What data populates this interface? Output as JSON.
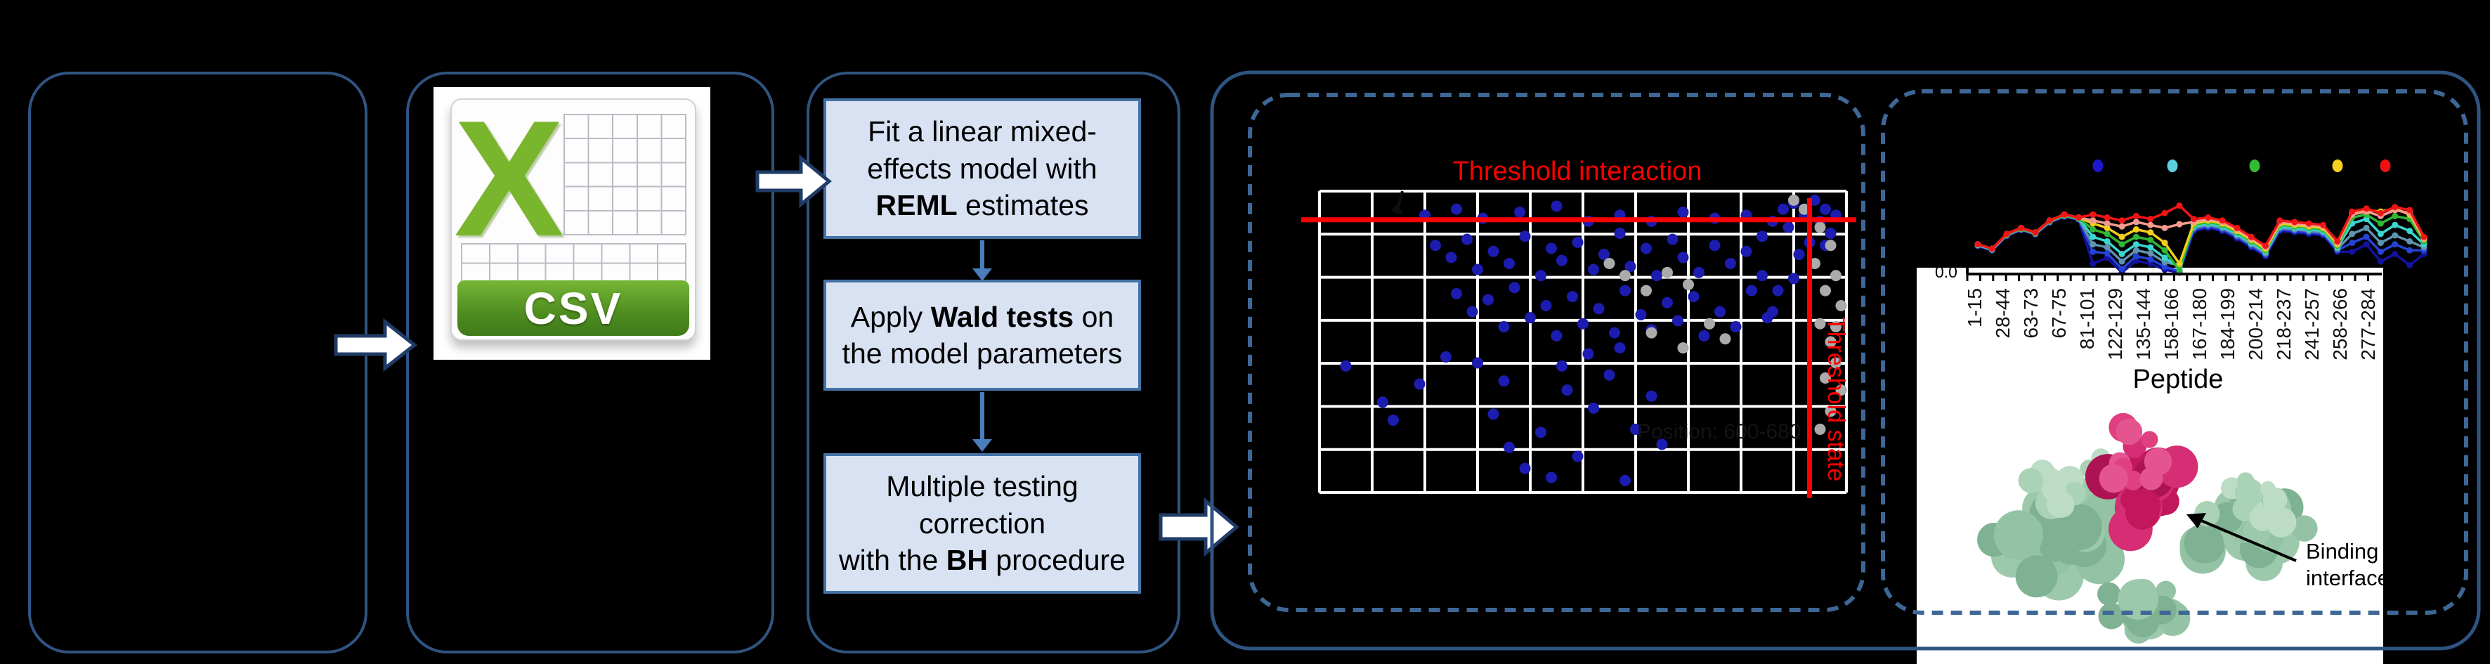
{
  "pipeline": {
    "csv_icon": {
      "x_label": "X",
      "banner_label": "CSV",
      "x_color": "#7AB52E",
      "banner_color": "#4e8c1f"
    },
    "steps": [
      {
        "text": "Fit a linear mixed-\neffects model with\n**REML** estimates"
      },
      {
        "text": "Apply **Wald tests** on\nthe model parameters"
      },
      {
        "text": "Multiple testing\ncorrection\nwith the **BH** procedure"
      }
    ],
    "step_fill": "#D9E2F3",
    "step_border": "#4472A4",
    "solid_border_color": "#2F5481",
    "dashed_border_color": "#3E6796",
    "flow_arrow_color": "#4A7EBB"
  },
  "chart_data": [
    {
      "id": "volcano_scatter",
      "type": "scatter",
      "title": "Threshold interaction",
      "title_color": "#FF0000",
      "grid": {
        "color": "#FFFFFF",
        "v_lines": 11,
        "h_lines": 8,
        "background": "#000000"
      },
      "threshold_lines": {
        "color": "#FF0000",
        "horizontal_label": "Threshold interaction",
        "vertical_label": "Threshold state",
        "horizontal_y_pct": 9.5,
        "vertical_x_pct": 93
      },
      "faint_annotation": {
        "text": "Position: 600-680",
        "color": "#131313"
      },
      "series": [
        {
          "name": "significant-peptides",
          "color": "#1C1CB0",
          "marker_r": 8,
          "points_pct": [
            [
              20,
              8
            ],
            [
              26,
              6
            ],
            [
              31,
              9
            ],
            [
              38,
              7
            ],
            [
              45,
              5
            ],
            [
              51,
              10
            ],
            [
              57,
              8
            ],
            [
              63,
              10
            ],
            [
              69,
              7
            ],
            [
              75,
              9
            ],
            [
              81,
              8
            ],
            [
              86,
              10
            ],
            [
              22,
              18
            ],
            [
              25,
              22
            ],
            [
              28,
              16
            ],
            [
              30,
              26
            ],
            [
              33,
              20
            ],
            [
              36,
              24
            ],
            [
              39,
              15
            ],
            [
              42,
              28
            ],
            [
              44,
              19
            ],
            [
              46,
              23
            ],
            [
              49,
              17
            ],
            [
              52,
              26
            ],
            [
              54,
              21
            ],
            [
              57,
              14
            ],
            [
              59,
              25
            ],
            [
              62,
              19
            ],
            [
              64,
              28
            ],
            [
              67,
              16
            ],
            [
              69,
              22
            ],
            [
              72,
              27
            ],
            [
              75,
              18
            ],
            [
              78,
              24
            ],
            [
              81,
              20
            ],
            [
              84,
              15
            ],
            [
              26,
              34
            ],
            [
              29,
              40
            ],
            [
              32,
              36
            ],
            [
              35,
              45
            ],
            [
              37,
              32
            ],
            [
              40,
              42
            ],
            [
              43,
              38
            ],
            [
              45,
              48
            ],
            [
              48,
              35
            ],
            [
              50,
              44
            ],
            [
              53,
              39
            ],
            [
              56,
              47
            ],
            [
              58,
              33
            ],
            [
              61,
              41
            ],
            [
              63,
              46
            ],
            [
              66,
              37
            ],
            [
              68,
              43
            ],
            [
              71,
              35
            ],
            [
              73,
              48
            ],
            [
              76,
              40
            ],
            [
              79,
              45
            ],
            [
              82,
              33
            ],
            [
              85,
              42
            ],
            [
              5,
              58
            ],
            [
              12,
              70
            ],
            [
              14,
              76
            ],
            [
              19,
              64
            ],
            [
              24,
              55
            ],
            [
              30,
              57
            ],
            [
              33,
              74
            ],
            [
              36,
              85
            ],
            [
              39,
              92
            ],
            [
              42,
              80
            ],
            [
              44,
              95
            ],
            [
              47,
              66
            ],
            [
              49,
              88
            ],
            [
              52,
              72
            ],
            [
              55,
              61
            ],
            [
              58,
              96
            ],
            [
              60,
              79
            ],
            [
              63,
              68
            ],
            [
              65,
              84
            ],
            [
              35,
              63
            ],
            [
              46,
              58
            ],
            [
              51,
              54
            ],
            [
              57,
              52
            ],
            [
              88,
              6
            ],
            [
              90,
              4
            ],
            [
              92,
              8
            ],
            [
              94,
              3
            ],
            [
              95,
              10
            ],
            [
              96,
              6
            ],
            [
              97,
              14
            ],
            [
              93,
              17
            ],
            [
              91,
              21
            ],
            [
              89,
              12
            ],
            [
              98,
              8
            ],
            [
              96,
              18
            ],
            [
              84,
              28
            ],
            [
              87,
              33
            ],
            [
              90,
              29
            ],
            [
              86,
              40
            ]
          ]
        },
        {
          "name": "non-significant-peptides",
          "color": "#ABABAB",
          "marker_r": 8,
          "points_pct": [
            [
              95,
              12
            ],
            [
              97,
              18
            ],
            [
              94,
              24
            ],
            [
              98,
              28
            ],
            [
              96,
              33
            ],
            [
              99,
              38
            ],
            [
              95,
              44
            ],
            [
              97,
              50
            ],
            [
              98,
              57
            ],
            [
              96,
              62
            ],
            [
              99,
              66
            ],
            [
              97,
              73
            ],
            [
              95,
              79
            ],
            [
              98,
              45
            ],
            [
              55,
              24
            ],
            [
              58,
              28
            ],
            [
              62,
              33
            ],
            [
              66,
              27
            ],
            [
              70,
              31
            ],
            [
              74,
              44
            ],
            [
              77,
              49
            ],
            [
              69,
              52
            ],
            [
              63,
              47
            ],
            [
              90,
              3
            ],
            [
              92,
              6
            ]
          ]
        }
      ]
    },
    {
      "id": "deuterium_uptake",
      "type": "line",
      "xlabel": "Peptide",
      "y_tick_top": "0.0",
      "categories": [
        "1-15",
        "28-44",
        "63-73",
        "67-75",
        "81-101",
        "122-129",
        "135-144",
        "158-166",
        "167-180",
        "184-199",
        "200-214",
        "218-237",
        "241-257",
        "258-266",
        "277-284"
      ],
      "legend_dot_colors": [
        "#1A1ACC",
        "#5CCFE0",
        "#33BB33",
        "#F5D020",
        "#EE1111"
      ],
      "x_pct": [
        0,
        3.2,
        6.5,
        9.7,
        12.9,
        16.1,
        19.4,
        22.6,
        25.8,
        29,
        32.3,
        35.5,
        38.7,
        41.9,
        45.2,
        48.4,
        51.6,
        54.8,
        58.1,
        61.3,
        64.5,
        67.7,
        71,
        74.2,
        77.4,
        80.6,
        83.9,
        87.1,
        90.3,
        93.5,
        96.8,
        100
      ],
      "series": [
        {
          "name": "navy",
          "color": "#12129E",
          "values_pct": [
            64,
            70,
            51,
            43,
            49,
            33,
            25,
            29,
            88,
            80,
            100,
            84,
            88,
            96,
            100,
            44,
            40,
            44,
            54,
            66,
            78,
            44,
            46,
            48,
            50,
            72,
            72,
            62,
            85,
            75,
            90,
            75
          ]
        },
        {
          "name": "blue",
          "color": "#2543D6",
          "values_pct": [
            64,
            70,
            50,
            42,
            48,
            32,
            24,
            28,
            72,
            74,
            95,
            78,
            82,
            92,
            98,
            42,
            38,
            42,
            52,
            64,
            76,
            42,
            44,
            46,
            48,
            70,
            60,
            52,
            72,
            62,
            70,
            70
          ]
        },
        {
          "name": "teal",
          "color": "#5F93B0",
          "values_pct": [
            63,
            69,
            50,
            42,
            48,
            32,
            24,
            28,
            62,
            66,
            85,
            70,
            74,
            86,
            90,
            40,
            36,
            40,
            50,
            62,
            74,
            40,
            42,
            44,
            46,
            68,
            48,
            40,
            60,
            50,
            58,
            66
          ]
        },
        {
          "name": "cyan",
          "color": "#3BD6D0",
          "values_pct": [
            63,
            69,
            49,
            41,
            47,
            31,
            23,
            27,
            52,
            58,
            75,
            62,
            66,
            80,
            93,
            38,
            34,
            38,
            48,
            60,
            72,
            38,
            40,
            42,
            44,
            66,
            34,
            28,
            48,
            36,
            44,
            62
          ]
        },
        {
          "name": "green",
          "color": "#2FB833",
          "values_pct": [
            62,
            68,
            49,
            41,
            47,
            31,
            23,
            27,
            42,
            48,
            62,
            52,
            56,
            70,
            97,
            36,
            32,
            36,
            46,
            58,
            70,
            36,
            38,
            40,
            42,
            64,
            26,
            22,
            34,
            24,
            28,
            58
          ]
        },
        {
          "name": "yellow",
          "color": "#F2CE1B",
          "values_pct": [
            62,
            68,
            48,
            40,
            46,
            30,
            22,
            26,
            34,
            40,
            52,
            42,
            46,
            60,
            88,
            34,
            30,
            34,
            44,
            56,
            68,
            34,
            36,
            38,
            40,
            62,
            20,
            16,
            18,
            14,
            22,
            55
          ]
        },
        {
          "name": "salmon",
          "color": "#F49B8F",
          "values_pct": [
            62,
            68,
            48,
            40,
            46,
            30,
            22,
            26,
            30,
            34,
            38,
            32,
            36,
            40,
            35,
            32,
            28,
            32,
            42,
            54,
            66,
            32,
            34,
            36,
            38,
            60,
            22,
            18,
            24,
            16,
            20,
            54
          ]
        },
        {
          "name": "red",
          "color": "#F21414",
          "values_pct": [
            62,
            68,
            48,
            40,
            46,
            30,
            22,
            26,
            22,
            26,
            30,
            24,
            28,
            20,
            10,
            28,
            26,
            30,
            40,
            52,
            64,
            30,
            32,
            34,
            36,
            58,
            18,
            14,
            20,
            12,
            16,
            52
          ]
        }
      ]
    }
  ],
  "protein": {
    "label_line1": "Binding",
    "label_line2": "interface",
    "surface_color": "#93C3A4",
    "interface_color": "#C2185B",
    "arrow_color": "#000000"
  }
}
